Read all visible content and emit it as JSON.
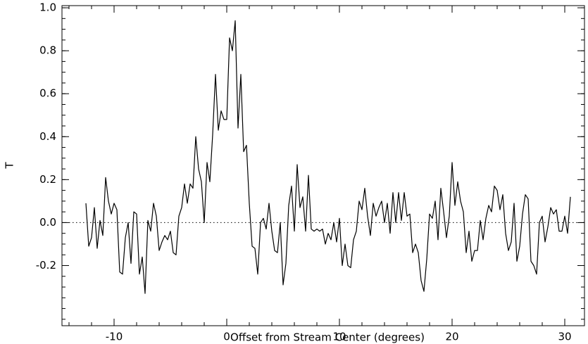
{
  "chart_data": {
    "type": "line",
    "xlabel": "Offset from Stream Center (degrees)",
    "ylabel": "T",
    "x": [
      -12.5,
      -12.25,
      -12,
      -11.75,
      -11.5,
      -11.25,
      -11,
      -10.75,
      -10.5,
      -10.25,
      -10,
      -9.75,
      -9.5,
      -9.25,
      -9,
      -8.75,
      -8.5,
      -8.25,
      -8,
      -7.75,
      -7.5,
      -7.25,
      -7,
      -6.75,
      -6.5,
      -6.25,
      -6,
      -5.75,
      -5.5,
      -5.25,
      -5,
      -4.75,
      -4.5,
      -4.25,
      -4,
      -3.75,
      -3.5,
      -3.25,
      -3,
      -2.75,
      -2.5,
      -2.25,
      -2,
      -1.75,
      -1.5,
      -1.25,
      -1,
      -0.75,
      -0.5,
      -0.25,
      0,
      0.25,
      0.5,
      0.75,
      1,
      1.25,
      1.5,
      1.75,
      2,
      2.25,
      2.5,
      2.75,
      3,
      3.25,
      3.5,
      3.75,
      4,
      4.25,
      4.5,
      4.75,
      5,
      5.25,
      5.5,
      5.75,
      6,
      6.25,
      6.5,
      6.75,
      7,
      7.25,
      7.5,
      7.75,
      8,
      8.25,
      8.5,
      8.75,
      9,
      9.25,
      9.5,
      9.75,
      10,
      10.25,
      10.5,
      10.75,
      11,
      11.25,
      11.5,
      11.75,
      12,
      12.25,
      12.5,
      12.75,
      13,
      13.25,
      13.5,
      13.75,
      14,
      14.25,
      14.5,
      14.75,
      15,
      15.25,
      15.5,
      15.75,
      16,
      16.25,
      16.5,
      16.75,
      17,
      17.25,
      17.5,
      17.75,
      18,
      18.25,
      18.5,
      18.75,
      19,
      19.25,
      19.5,
      19.75,
      20,
      20.25,
      20.5,
      20.75,
      21,
      21.25,
      21.5,
      21.75,
      22,
      22.25,
      22.5,
      22.75,
      23,
      23.25,
      23.5,
      23.75,
      24,
      24.25,
      24.5,
      24.75,
      25,
      25.25,
      25.5,
      25.75,
      26,
      26.25,
      26.5,
      26.75,
      27,
      27.25,
      27.5,
      27.75,
      28,
      28.25,
      28.5,
      28.75,
      29,
      29.25,
      29.5,
      29.75,
      30,
      30.25,
      30.5
    ],
    "series": [
      {
        "name": "T",
        "color": "#000000",
        "values": [
          0.09,
          -0.11,
          -0.07,
          0.07,
          -0.12,
          0.01,
          -0.06,
          0.21,
          0.1,
          0.04,
          0.09,
          0.06,
          -0.23,
          -0.24,
          -0.07,
          0.0,
          -0.19,
          0.05,
          0.04,
          -0.24,
          -0.16,
          -0.33,
          0.01,
          -0.04,
          0.09,
          0.03,
          -0.13,
          -0.09,
          -0.06,
          -0.08,
          -0.04,
          -0.14,
          -0.15,
          0.03,
          0.07,
          0.18,
          0.09,
          0.18,
          0.16,
          0.4,
          0.25,
          0.19,
          0.0,
          0.28,
          0.19,
          0.41,
          0.69,
          0.43,
          0.52,
          0.48,
          0.48,
          0.86,
          0.8,
          0.94,
          0.44,
          0.69,
          0.33,
          0.36,
          0.09,
          -0.11,
          -0.12,
          -0.24,
          0.0,
          0.02,
          -0.03,
          0.09,
          -0.04,
          -0.13,
          -0.14,
          0.0,
          -0.29,
          -0.19,
          0.08,
          0.17,
          -0.04,
          0.27,
          0.07,
          0.12,
          -0.04,
          0.22,
          -0.03,
          -0.04,
          -0.03,
          -0.04,
          -0.03,
          -0.1,
          -0.05,
          -0.08,
          0.0,
          -0.09,
          0.02,
          -0.2,
          -0.1,
          -0.2,
          -0.21,
          -0.08,
          -0.04,
          0.1,
          0.06,
          0.16,
          0.03,
          -0.06,
          0.09,
          0.03,
          0.07,
          0.1,
          0.0,
          0.09,
          -0.05,
          0.14,
          0.0,
          0.14,
          0.01,
          0.14,
          0.03,
          0.04,
          -0.14,
          -0.1,
          -0.14,
          -0.27,
          -0.32,
          -0.17,
          0.04,
          0.02,
          0.1,
          -0.08,
          0.16,
          0.05,
          -0.07,
          0.03,
          0.28,
          0.08,
          0.19,
          0.1,
          0.05,
          -0.14,
          -0.04,
          -0.18,
          -0.13,
          -0.13,
          0.01,
          -0.08,
          0.02,
          0.08,
          0.05,
          0.17,
          0.15,
          0.06,
          0.13,
          -0.05,
          -0.13,
          -0.09,
          0.09,
          -0.18,
          -0.11,
          0.04,
          0.13,
          0.11,
          -0.18,
          -0.2,
          -0.24,
          0.0,
          0.03,
          -0.09,
          -0.02,
          0.07,
          0.04,
          0.06,
          -0.04,
          -0.04,
          0.03,
          -0.05,
          0.12
        ]
      }
    ],
    "hline": 0,
    "xlim": [
      -14.625,
      31.75
    ],
    "ylim": [
      -0.48,
      1.01
    ],
    "xticks": [
      -10,
      0,
      10,
      20,
      30
    ],
    "yticks": [
      -0.2,
      {
        "value": 0,
        "label": "0.0"
      },
      0.2,
      0.4,
      0.6,
      0.8,
      {
        "value": 1,
        "label": "1.0"
      }
    ],
    "xminor": 2,
    "yminor": 0.05
  }
}
